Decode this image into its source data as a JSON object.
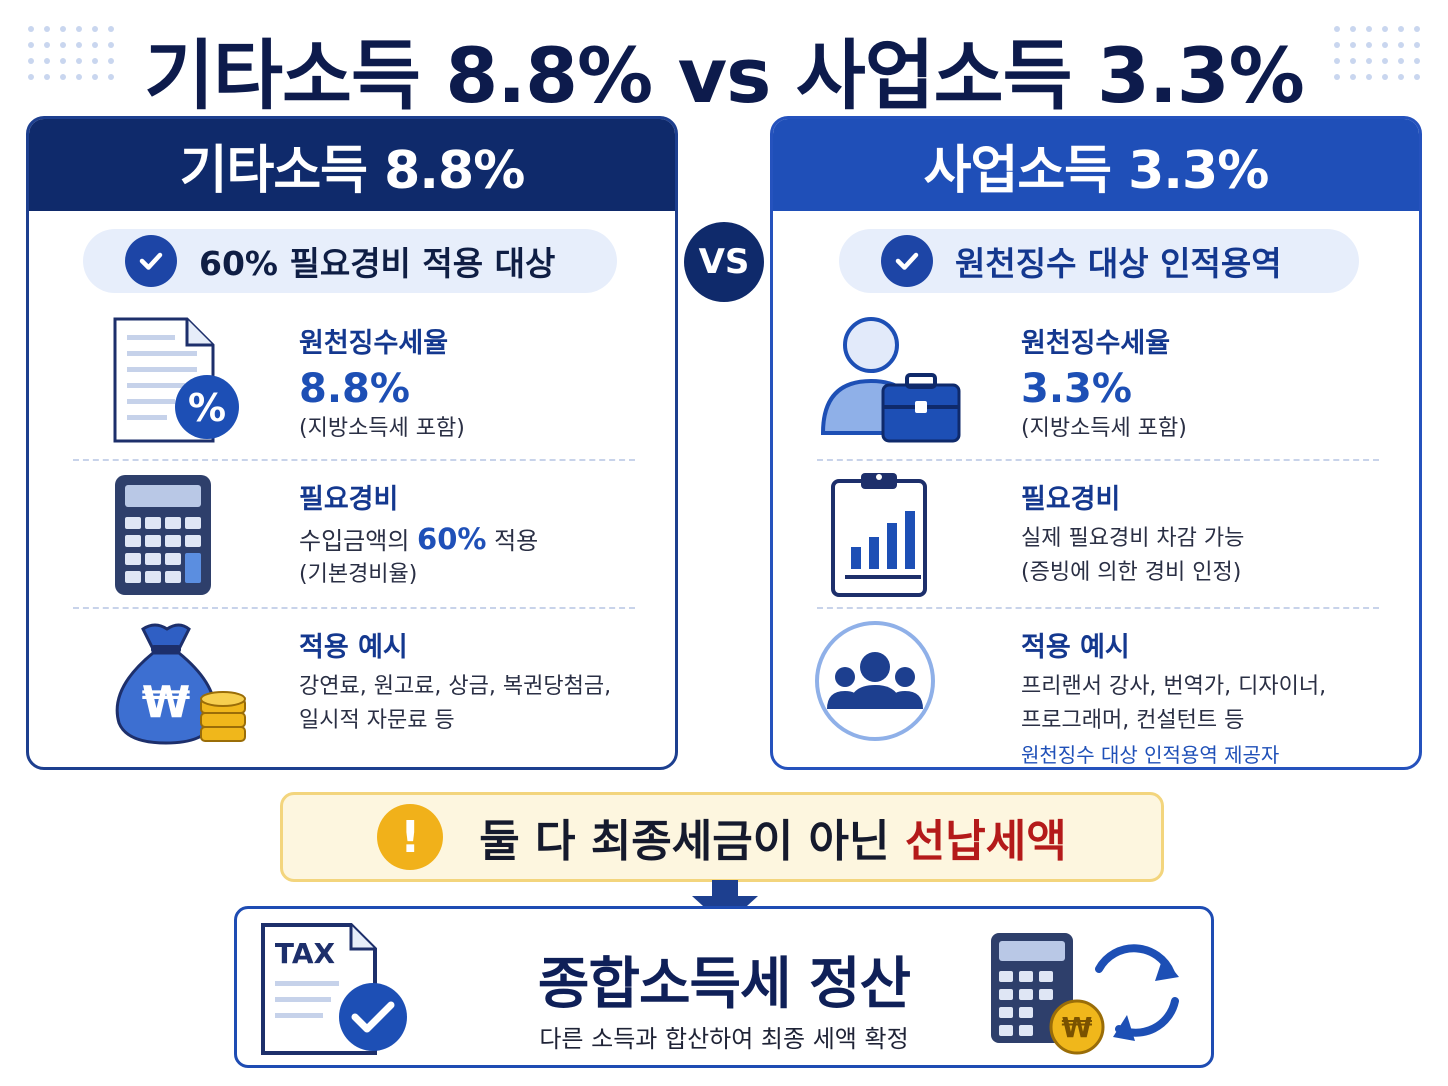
{
  "title": "기타소득 8.8% vs 사업소득 3.3%",
  "vs_label": "VS",
  "left_card": {
    "header": "기타소득 8.8%",
    "pill": "60% 필요경비 적용 대상",
    "rate": {
      "label": "원천징수세율",
      "value": "8.8%",
      "note": "(지방소득세 포함)",
      "icon_text": "%"
    },
    "expense": {
      "label": "필요경비",
      "line1_pre": "수입금액의 ",
      "line1_hl": "60%",
      "line1_post": " 적용",
      "line2": "(기본경비율)"
    },
    "example": {
      "label": "적용 예시",
      "line1": "강연료, 원고료, 상금, 복권당첨금,",
      "line2": "일시적 자문료 등",
      "icon_text": "₩"
    }
  },
  "right_card": {
    "header": "사업소득 3.3%",
    "pill": "원천징수 대상 인적용역",
    "rate": {
      "label": "원천징수세율",
      "value": "3.3%",
      "note": "(지방소득세 포함)"
    },
    "expense": {
      "label": "필요경비",
      "line1": "실제 필요경비 차감 가능",
      "line2": "(증빙에 의한 경비 인정)"
    },
    "example": {
      "label": "적용 예시",
      "line1": "프리랜서 강사, 번역가, 디자이너,",
      "line2": "프로그래머, 컨설턴트 등",
      "line3": "원천징수 대상 인적용역 제공자"
    }
  },
  "warning": {
    "pre": "둘 다 최종세금이 아닌 ",
    "highlight": "선납세액",
    "icon_text": "!"
  },
  "final": {
    "title": "종합소득세 정산",
    "subtitle": "다른 소득과 합산하여 최종 세액 확정",
    "doc_label": "TAX",
    "coin_text": "₩"
  },
  "colors": {
    "navy": "#0f2a6b",
    "blue": "#1f4fb8",
    "accent": "#1d4fb5",
    "warning_red": "#b41a1a",
    "warning_bg": "#fdf6df",
    "gold": "#f1b11a"
  },
  "icons": [
    "check-icon",
    "document-percent-icon",
    "calculator-icon",
    "money-bag-icon",
    "coin-stack-icon",
    "person-briefcase-icon",
    "clipboard-chart-icon",
    "group-icon",
    "alert-icon",
    "arrow-down-icon",
    "tax-document-icon",
    "refresh-icon"
  ]
}
